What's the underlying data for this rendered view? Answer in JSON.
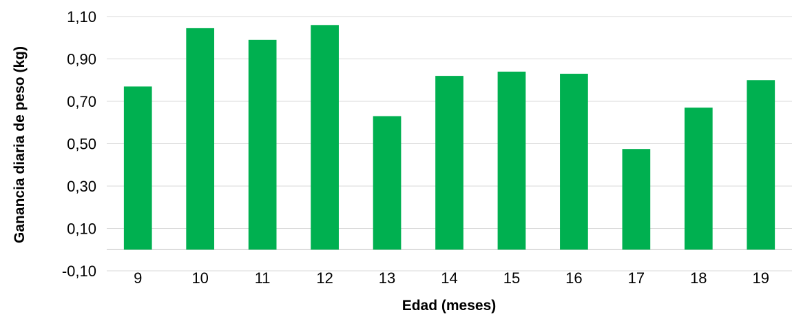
{
  "chart_data": {
    "type": "bar",
    "title": "",
    "xlabel": "Edad (meses)",
    "ylabel": "Ganancia diaria de peso  (kg)",
    "categories": [
      "9",
      "10",
      "11",
      "12",
      "13",
      "14",
      "15",
      "16",
      "17",
      "18",
      "19"
    ],
    "values": [
      0.77,
      1.045,
      0.99,
      1.06,
      0.63,
      0.82,
      0.84,
      0.83,
      0.475,
      0.67,
      0.8
    ],
    "ylim": [
      -0.1,
      1.1
    ],
    "yticks": [
      "-0,10",
      "0,10",
      "0,30",
      "0,50",
      "0,70",
      "0,90",
      "1,10"
    ],
    "ytick_values": [
      -0.1,
      0.1,
      0.3,
      0.5,
      0.7,
      0.9,
      1.1
    ],
    "grid": true,
    "legend": "none",
    "colors": {
      "bar": "#00b050",
      "grid": "#d9d9d9",
      "axis": "#bfbfbf"
    }
  }
}
